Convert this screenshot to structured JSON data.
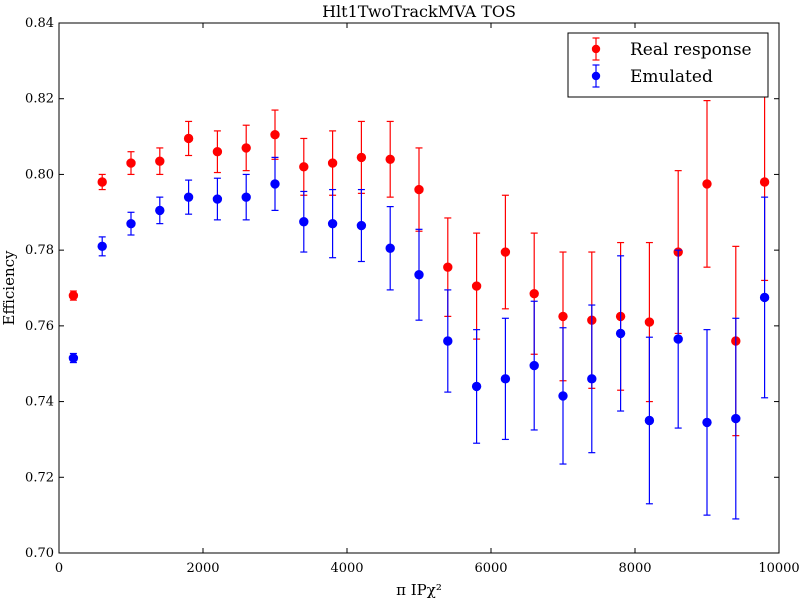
{
  "chart_data": {
    "type": "scatter",
    "title": "Hlt1TwoTrackMVA TOS",
    "xlabel": "π IPχ²",
    "ylabel": "Efficiency",
    "xlim": [
      0,
      10000
    ],
    "ylim": [
      0.7,
      0.84
    ],
    "xticks": [
      0,
      2000,
      4000,
      6000,
      8000,
      10000
    ],
    "xtick_labels": [
      "0",
      "2000",
      "4000",
      "6000",
      "8000",
      "10000"
    ],
    "yticks": [
      0.7,
      0.72,
      0.74,
      0.76,
      0.78,
      0.8,
      0.82,
      0.84
    ],
    "ytick_labels": [
      "0.70",
      "0.72",
      "0.74",
      "0.76",
      "0.78",
      "0.80",
      "0.82",
      "0.84"
    ],
    "grid": false,
    "legend_position": "top-right",
    "x": [
      200,
      600,
      1000,
      1400,
      1800,
      2200,
      2600,
      3000,
      3400,
      3800,
      4200,
      4600,
      5000,
      5400,
      5800,
      6200,
      6600,
      7000,
      7400,
      7800,
      8200,
      8600,
      9000,
      9400,
      9800
    ],
    "series": [
      {
        "name": "Real response",
        "color": "#ff0000",
        "values": [
          0.768,
          0.798,
          0.803,
          0.8035,
          0.8095,
          0.806,
          0.807,
          0.8105,
          0.802,
          0.803,
          0.8045,
          0.804,
          0.796,
          0.7755,
          0.7705,
          0.7795,
          0.7685,
          0.7625,
          0.7615,
          0.7625,
          0.761,
          0.7795,
          0.7975,
          0.756,
          0.798
        ],
        "errors": [
          0.0012,
          0.002,
          0.003,
          0.0035,
          0.0045,
          0.0055,
          0.006,
          0.0065,
          0.0075,
          0.0085,
          0.0095,
          0.01,
          0.011,
          0.013,
          0.014,
          0.015,
          0.016,
          0.017,
          0.018,
          0.0195,
          0.021,
          0.0215,
          0.022,
          0.025,
          0.026
        ]
      },
      {
        "name": "Emulated",
        "color": "#0000ff",
        "values": [
          0.7515,
          0.781,
          0.787,
          0.7905,
          0.794,
          0.7935,
          0.794,
          0.7975,
          0.7875,
          0.787,
          0.7865,
          0.7805,
          0.7735,
          0.756,
          0.744,
          0.746,
          0.7495,
          0.7415,
          0.746,
          0.758,
          0.735,
          0.7565,
          0.7345,
          0.7355,
          0.7675
        ],
        "errors": [
          0.0012,
          0.0025,
          0.003,
          0.0035,
          0.0045,
          0.0055,
          0.006,
          0.007,
          0.008,
          0.009,
          0.0095,
          0.011,
          0.012,
          0.0135,
          0.015,
          0.016,
          0.017,
          0.018,
          0.0195,
          0.0205,
          0.022,
          0.0235,
          0.0245,
          0.0265,
          0.0265
        ]
      }
    ]
  }
}
